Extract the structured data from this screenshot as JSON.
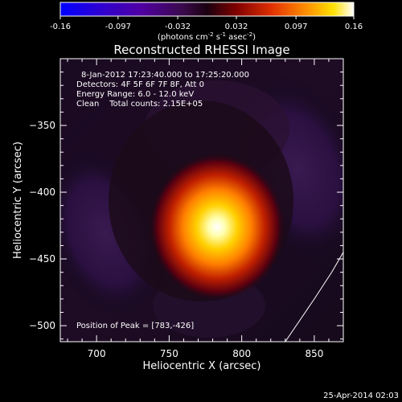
{
  "colorbar": {
    "tick_labels": [
      "-0.16",
      "-0.097",
      "-0.032",
      "0.032",
      "0.097",
      "0.16"
    ],
    "tick_values": [
      -0.16,
      -0.097,
      -0.032,
      0.032,
      0.097,
      0.16
    ],
    "range": [
      -0.16,
      0.16
    ],
    "units_prefix": "(photons cm",
    "units_exp1": "-2",
    "units_mid": " s",
    "units_exp2": "-1",
    "units_mid2": " asec",
    "units_exp3": "-2",
    "units_suffix": ")",
    "colors": [
      "#0000ff",
      "#4000c0",
      "#500080",
      "#3a0a3a",
      "#600000",
      "#cc2000",
      "#ff8000",
      "#ffd000",
      "#ffffe0"
    ]
  },
  "chart_data": {
    "type": "heatmap",
    "title": "Reconstructed RHESSI Image",
    "xlabel": "Heliocentric X (arcsec)",
    "ylabel": "Heliocentric Y (arcsec)",
    "xlim": [
      675,
      870
    ],
    "ylim": [
      -512,
      -300
    ],
    "xticks": [
      700,
      750,
      800,
      850
    ],
    "yticks": [
      -350,
      -400,
      -450,
      -500
    ],
    "xtick_labels": [
      "700",
      "750",
      "800",
      "850"
    ],
    "ytick_labels": [
      "−350",
      "−400",
      "−450",
      "−500"
    ],
    "annotations": [
      "8-Jan-2012 17:23:40.000 to 17:25:20.000",
      "Detectors: 4F 5F 6F 7F 8F, Att 0",
      "Energy Range: 6.0 - 12.0 keV",
      "Clean    Total counts: 2.15E+05"
    ],
    "peak_label": "Position of Peak = [783,-426]",
    "peak": [
      783,
      -426
    ],
    "limb_curve": [
      [
        830,
        -512
      ],
      [
        850,
        -480
      ],
      [
        862,
        -460
      ],
      [
        870,
        -445
      ]
    ],
    "grid": false
  },
  "footer": {
    "date": "25-Apr-2014 02:03"
  }
}
